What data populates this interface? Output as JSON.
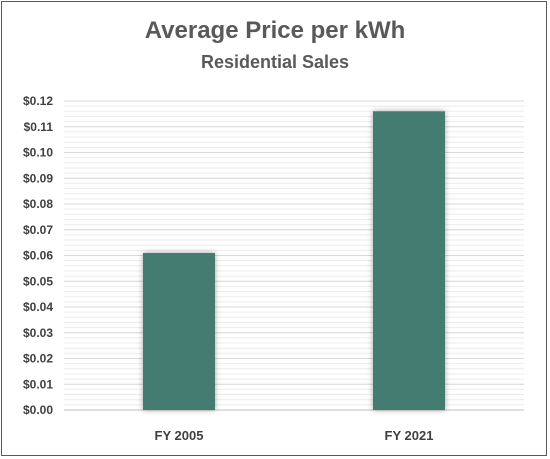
{
  "chart_data": {
    "type": "bar",
    "title": "Average Price per kWh",
    "subtitle": "Residential Sales",
    "categories": [
      "FY 2005",
      "FY 2021"
    ],
    "values": [
      0.061,
      0.116
    ],
    "ylim": [
      0,
      0.12
    ],
    "yticks": [
      "$0.00",
      "$0.01",
      "$0.02",
      "$0.03",
      "$0.04",
      "$0.05",
      "$0.06",
      "$0.07",
      "$0.08",
      "$0.09",
      "$0.10",
      "$0.11",
      "$0.12"
    ],
    "bar_color": "#447b72",
    "grid": true,
    "legend": "none"
  }
}
